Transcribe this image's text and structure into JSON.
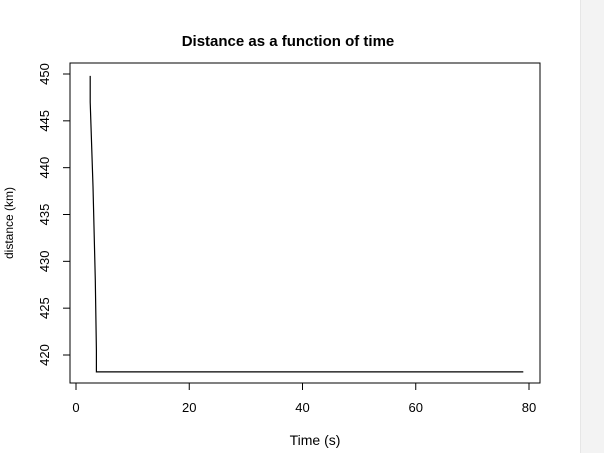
{
  "chart_data": {
    "type": "line",
    "title": "Distance as a function of time",
    "xlabel": "Time (s)",
    "ylabel": "distance (km)",
    "xlim": [
      0,
      80
    ],
    "ylim": [
      418,
      450
    ],
    "xticks": [
      0,
      20,
      40,
      60,
      80
    ],
    "yticks": [
      420,
      425,
      430,
      435,
      440,
      445,
      450
    ],
    "grid": false,
    "legend": "none",
    "line_color": "#000000",
    "series": [
      {
        "x": [
          2.5,
          2.5,
          3.0,
          3.4,
          3.6,
          3.6,
          79.0
        ],
        "y": [
          449.8,
          447.0,
          438.0,
          428.0,
          420.5,
          418.2,
          418.2
        ]
      }
    ]
  }
}
